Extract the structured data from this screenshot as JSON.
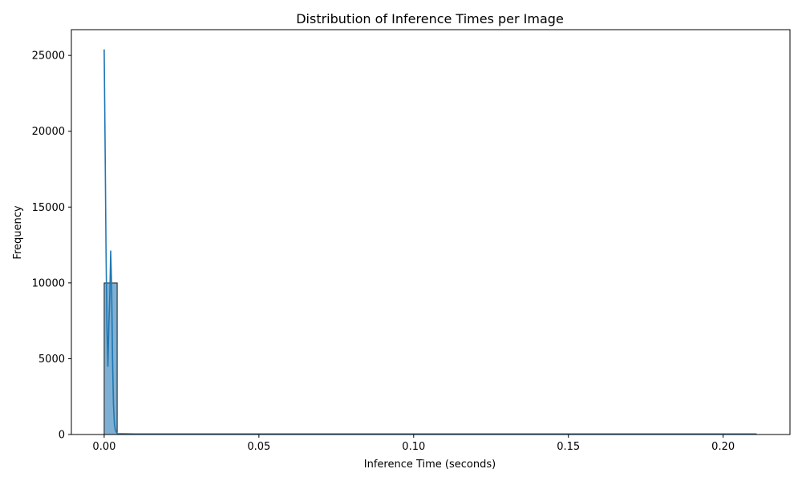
{
  "chart_data": {
    "type": "bar",
    "title": "Distribution of Inference Times per Image",
    "xlabel": "Inference Time (seconds)",
    "ylabel": "Frequency",
    "xlim": [
      -0.0106,
      0.2216
    ],
    "ylim": [
      0,
      26700
    ],
    "x_ticks": [
      0.0,
      0.05,
      0.1,
      0.15,
      0.2
    ],
    "x_tick_labels": [
      "0.00",
      "0.05",
      "0.10",
      "0.15",
      "0.20"
    ],
    "y_ticks": [
      0,
      5000,
      10000,
      15000,
      20000,
      25000
    ],
    "y_tick_labels": [
      "0",
      "5000",
      "10000",
      "15000",
      "20000",
      "25000"
    ],
    "grid": false,
    "bins": [
      {
        "x0": 0.0,
        "x1": 0.0042,
        "count": 9995
      },
      {
        "x0": 0.0042,
        "x1": 0.2108,
        "count": 5
      }
    ],
    "kde": {
      "x": [
        0.0,
        0.0003,
        0.0006,
        0.0009,
        0.0012,
        0.0015,
        0.0018,
        0.0021,
        0.0024,
        0.0027,
        0.003,
        0.0033,
        0.0036,
        0.0042,
        0.01,
        0.05,
        0.1,
        0.15,
        0.2108
      ],
      "y": [
        25400,
        19000,
        12000,
        7000,
        4500,
        7200,
        9000,
        12100,
        9800,
        5000,
        2000,
        700,
        300,
        60,
        40,
        40,
        40,
        40,
        40
      ]
    },
    "colors": {
      "bar_fill": "#7fb0d3",
      "bar_edge": "#1a1a1a",
      "kde_line": "#1f77b4",
      "axes": "#000000"
    }
  }
}
